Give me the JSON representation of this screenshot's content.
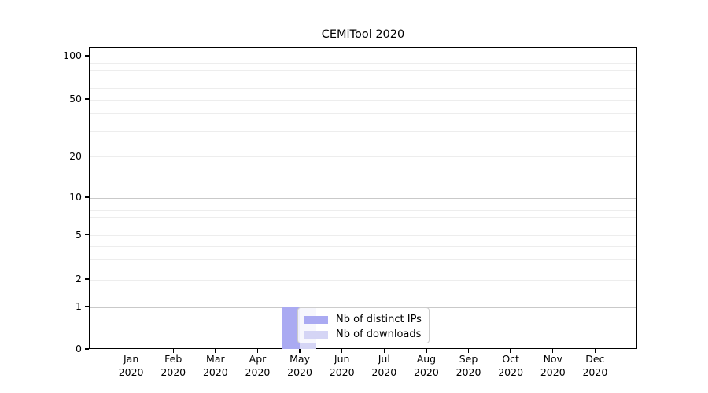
{
  "chart_data": {
    "type": "bar",
    "title": "CEMiTool 2020",
    "categories": [
      "Jan 2020",
      "Feb 2020",
      "Mar 2020",
      "Apr 2020",
      "May 2020",
      "Jun 2020",
      "Jul 2020",
      "Aug 2020",
      "Sep 2020",
      "Oct 2020",
      "Nov 2020",
      "Dec 2020"
    ],
    "series": [
      {
        "name": "Nb of distinct IPs",
        "color": "#aaaaf2",
        "values": [
          0,
          0,
          0,
          0,
          1,
          0,
          0,
          0,
          0,
          0,
          0,
          0
        ]
      },
      {
        "name": "Nb of downloads",
        "color": "#d5d5f5",
        "values": [
          0,
          0,
          0,
          0,
          1,
          0,
          0,
          0,
          0,
          0,
          0,
          0
        ]
      }
    ],
    "xlabel": "",
    "ylabel": "",
    "ytick_values": [
      0,
      1,
      2,
      5,
      10,
      20,
      50,
      100
    ],
    "ytick_labels": [
      "0",
      "1",
      "2",
      "5",
      "10",
      "20",
      "50",
      "100"
    ],
    "ylim": [
      0,
      115
    ],
    "scale": "log-like above 1, linear between 0 and 1",
    "grid": {
      "on": true,
      "major_at": [
        1,
        10,
        100
      ],
      "minor_at": [
        2,
        3,
        4,
        5,
        6,
        7,
        8,
        9,
        20,
        30,
        40,
        50,
        60,
        70,
        80,
        90
      ],
      "major_color": "#c9c9c9",
      "minor_color": "#ededed"
    },
    "legend": {
      "position": "lower left area, overlapping May bars",
      "items": [
        "Nb of distinct IPs",
        "Nb of downloads"
      ]
    }
  },
  "colors": {
    "axis": "#000000",
    "text": "#000000",
    "background": "#ffffff"
  }
}
